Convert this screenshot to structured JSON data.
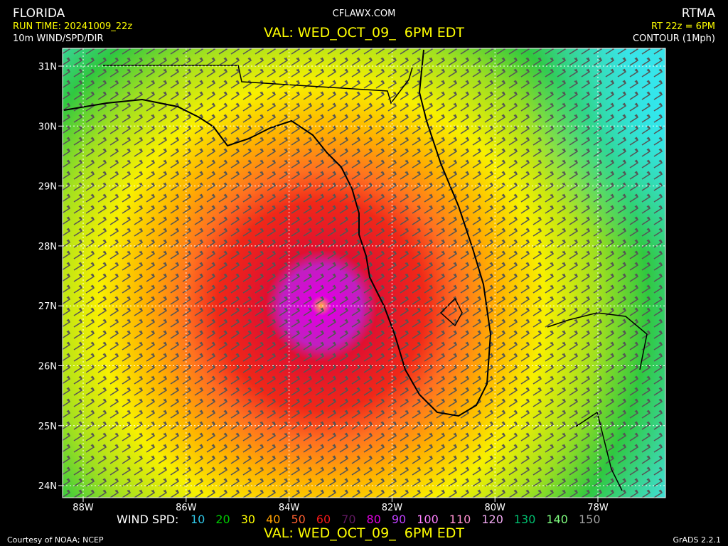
{
  "header": {
    "region": "FLORIDA",
    "site": "CFLAWX.COM",
    "model": "RTMA",
    "run_time": "RUN TIME: 20241009_22z",
    "valid": "VAL: WED_OCT_09_  6PM EDT",
    "rt": "RT 22z = 6PM",
    "field": "10m WIND/SPD/DIR",
    "contour": "CONTOUR (1Mph)"
  },
  "map": {
    "lat_labels": [
      "31N",
      "30N",
      "29N",
      "28N",
      "27N",
      "26N",
      "25N",
      "24N"
    ],
    "lon_labels": [
      "88W",
      "86W",
      "84W",
      "82W",
      "80W",
      "78W"
    ]
  },
  "legend": {
    "label": "WIND SPD:",
    "items": [
      {
        "label": "10",
        "color": "#30c8e8"
      },
      {
        "label": "20",
        "color": "#00c800"
      },
      {
        "label": "30",
        "color": "#ffff00"
      },
      {
        "label": "40",
        "color": "#ffa000"
      },
      {
        "label": "50",
        "color": "#ff6030"
      },
      {
        "label": "60",
        "color": "#f01818"
      },
      {
        "label": "70",
        "color": "#601860"
      },
      {
        "label": "80",
        "color": "#e000e0"
      },
      {
        "label": "90",
        "color": "#c040ff"
      },
      {
        "label": "100",
        "color": "#ff80ff"
      },
      {
        "label": "110",
        "color": "#ff90d0"
      },
      {
        "label": "120",
        "color": "#f0a8f0"
      },
      {
        "label": "130",
        "color": "#00c070"
      },
      {
        "label": "140",
        "color": "#80ff80"
      },
      {
        "label": "150",
        "color": "#a0a0a0"
      }
    ]
  },
  "footer": {
    "valid": "VAL: WED_OCT_09_  6PM EDT",
    "credit": "Courtesy of NOAA; NCEP",
    "software": "GrADS 2.2.1"
  }
}
